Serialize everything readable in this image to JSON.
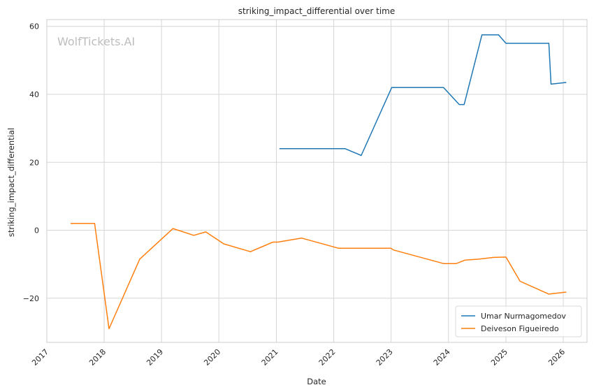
{
  "watermark": "WolfTickets.AI",
  "chart_data": {
    "type": "line",
    "title": "striking_impact_differential over time",
    "xlabel": "Date",
    "ylabel": "striking_impact_differential",
    "xlim": [
      "2017-01-01",
      "2026-06-01"
    ],
    "ylim": [
      -33,
      62
    ],
    "x_ticks": [
      "2017",
      "2018",
      "2019",
      "2020",
      "2021",
      "2022",
      "2023",
      "2024",
      "2025",
      "2026"
    ],
    "y_ticks": [
      -20,
      0,
      20,
      40,
      60
    ],
    "y_tick_labels": [
      "−20",
      "0",
      "20",
      "40",
      "60"
    ],
    "grid": true,
    "legend_position": "bottom-right",
    "series": [
      {
        "name": "Umar Nurmagomedov",
        "color": "#1f77b4",
        "points": [
          [
            "2021-01-20",
            24.0
          ],
          [
            "2022-03-15",
            24.0
          ],
          [
            "2022-06-25",
            22.0
          ],
          [
            "2023-01-05",
            42.0
          ],
          [
            "2023-12-01",
            42.0
          ],
          [
            "2024-03-10",
            37.0
          ],
          [
            "2024-04-10",
            37.0
          ],
          [
            "2024-08-01",
            57.5
          ],
          [
            "2024-11-15",
            57.5
          ],
          [
            "2025-01-01",
            55.0
          ],
          [
            "2025-10-01",
            55.0
          ],
          [
            "2025-10-15",
            43.0
          ],
          [
            "2026-01-20",
            43.5
          ]
        ]
      },
      {
        "name": "Deiveson Figueiredo",
        "color": "#ff7f0e",
        "points": [
          [
            "2017-06-01",
            2.0
          ],
          [
            "2017-11-01",
            2.0
          ],
          [
            "2018-02-01",
            -29.0
          ],
          [
            "2018-08-15",
            -8.5
          ],
          [
            "2019-03-15",
            0.5
          ],
          [
            "2019-07-25",
            -1.5
          ],
          [
            "2019-10-10",
            -0.5
          ],
          [
            "2020-02-01",
            -4.0
          ],
          [
            "2020-07-20",
            -6.3
          ],
          [
            "2020-12-10",
            -3.5
          ],
          [
            "2021-01-10",
            -3.5
          ],
          [
            "2021-06-10",
            -2.3
          ],
          [
            "2022-02-01",
            -5.3
          ],
          [
            "2023-01-01",
            -5.3
          ],
          [
            "2023-01-15",
            -5.8
          ],
          [
            "2023-12-01",
            -9.8
          ],
          [
            "2024-02-20",
            -9.8
          ],
          [
            "2024-04-15",
            -8.8
          ],
          [
            "2024-07-10",
            -8.5
          ],
          [
            "2024-10-15",
            -8.0
          ],
          [
            "2025-01-01",
            -7.9
          ],
          [
            "2025-04-01",
            -15.0
          ],
          [
            "2025-10-01",
            -18.8
          ],
          [
            "2026-01-20",
            -18.2
          ]
        ]
      }
    ]
  }
}
